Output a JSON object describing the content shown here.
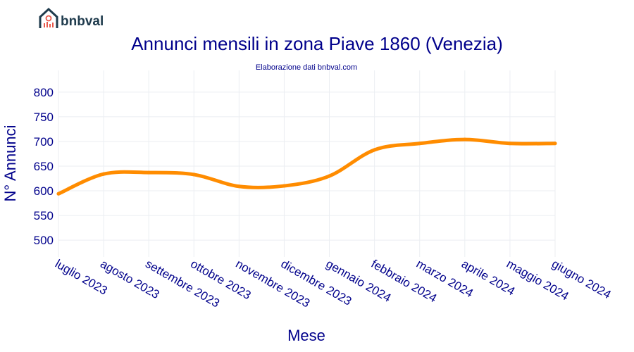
{
  "logo": {
    "text": "bnbval",
    "colors": {
      "house": "#1f3b4d",
      "accent": "#e8574a"
    }
  },
  "chart_data": {
    "type": "line",
    "title": "Annunci mensili in zona Piave 1860 (Venezia)",
    "subtitle": "Elaborazione dati bnbval.com",
    "xlabel": "Mese",
    "ylabel": "N° Annunci",
    "categories": [
      "luglio 2023",
      "agosto 2023",
      "settembre 2023",
      "ottobre 2023",
      "novembre 2023",
      "dicembre 2023",
      "gennaio 2024",
      "febbraio 2024",
      "marzo 2024",
      "aprile 2024",
      "maggio 2024",
      "giugno 2024"
    ],
    "values": [
      594,
      634,
      637,
      633,
      609,
      610,
      630,
      683,
      696,
      704,
      696,
      696
    ],
    "yticks": [
      500,
      550,
      600,
      650,
      700,
      750,
      800
    ],
    "ylim": [
      466,
      844
    ],
    "grid": true,
    "line_color": "#ff8c00",
    "text_color": "#00008b"
  }
}
